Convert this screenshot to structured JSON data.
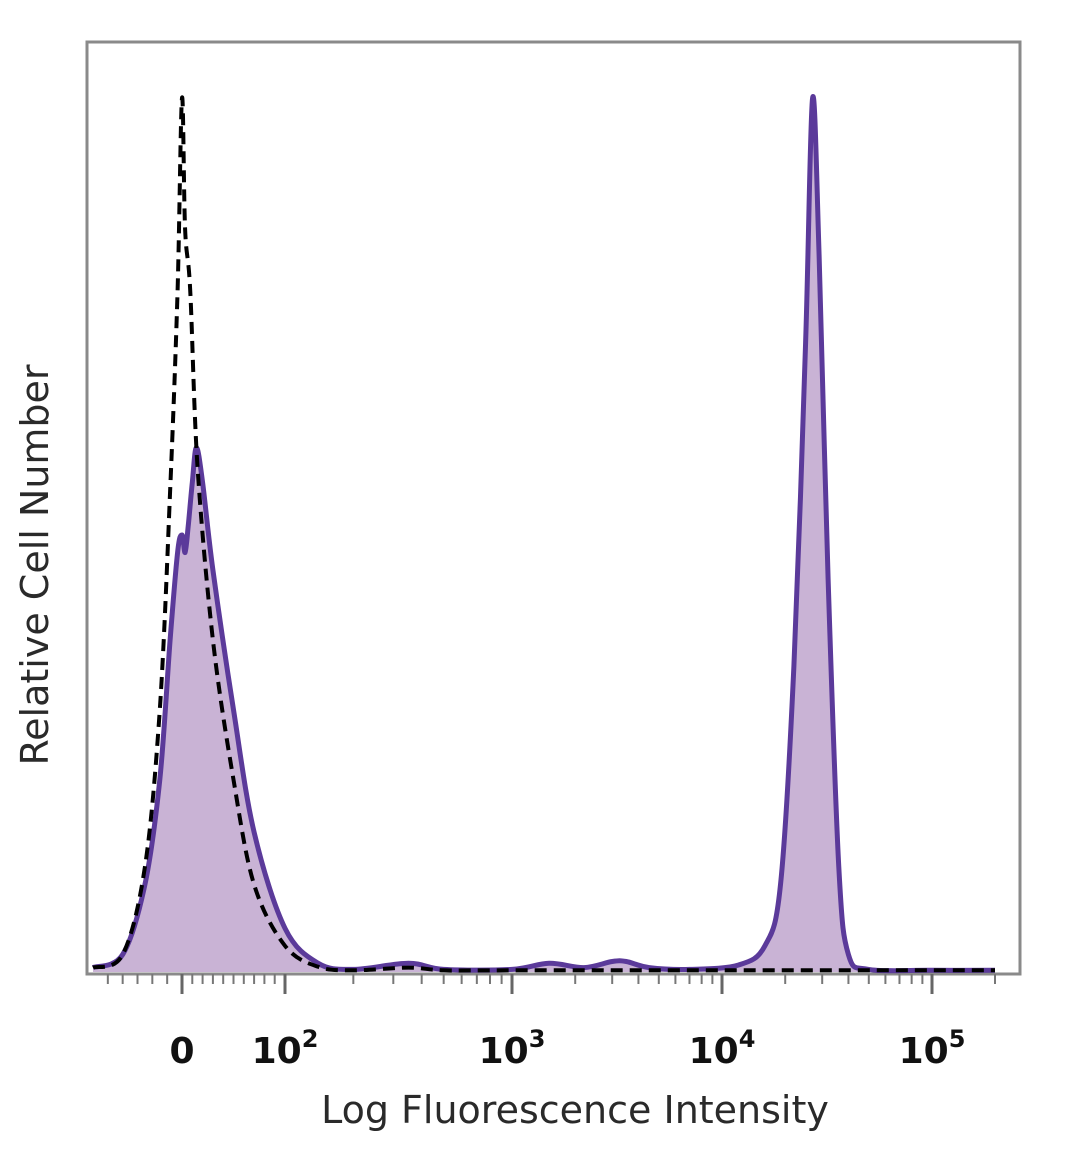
{
  "chart_data": {
    "type": "area",
    "title": "",
    "xlabel": "Log Fluorescence Intensity",
    "ylabel": "Relative Cell Number",
    "x_scale": "biexponential",
    "x_ticks": [
      {
        "value": 0,
        "label": "0"
      },
      {
        "value": 100,
        "label": "10",
        "exp": "2"
      },
      {
        "value": 1000,
        "label": "10",
        "exp": "3"
      },
      {
        "value": 10000,
        "label": "10",
        "exp": "4"
      },
      {
        "value": 100000,
        "label": "10",
        "exp": "5"
      }
    ],
    "ylim": [
      0,
      100
    ],
    "grid": false,
    "legend": "none",
    "series": [
      {
        "role": "control",
        "style": "dashed",
        "filled": false,
        "color": "#000000",
        "points": [
          [
            -60,
            0.5
          ],
          [
            -40,
            2
          ],
          [
            -25,
            12
          ],
          [
            -15,
            30
          ],
          [
            -8,
            55
          ],
          [
            -3,
            78
          ],
          [
            0,
            100
          ],
          [
            3,
            85
          ],
          [
            8,
            78
          ],
          [
            15,
            58
          ],
          [
            30,
            38
          ],
          [
            50,
            22
          ],
          [
            70,
            10
          ],
          [
            100,
            3
          ],
          [
            140,
            0.6
          ],
          [
            200,
            0.2
          ],
          [
            350,
            0.5
          ],
          [
            500,
            0.2
          ],
          [
            1000,
            0.2
          ],
          [
            10000,
            0.2
          ],
          [
            100000,
            0.2
          ],
          [
            200000,
            0.2
          ]
        ]
      },
      {
        "role": "stained",
        "style": "solid",
        "filled": true,
        "color": "#5b3a9a",
        "fill": "#c9b3d5",
        "points": [
          [
            -60,
            0.5
          ],
          [
            -40,
            2
          ],
          [
            -25,
            10
          ],
          [
            -15,
            22
          ],
          [
            -8,
            38
          ],
          [
            -3,
            48
          ],
          [
            0,
            50
          ],
          [
            3,
            48
          ],
          [
            6,
            51
          ],
          [
            10,
            56
          ],
          [
            14,
            60
          ],
          [
            20,
            56
          ],
          [
            30,
            46
          ],
          [
            50,
            30
          ],
          [
            70,
            16
          ],
          [
            100,
            5
          ],
          [
            140,
            1
          ],
          [
            200,
            0.3
          ],
          [
            350,
            1
          ],
          [
            500,
            0.3
          ],
          [
            1000,
            0.3
          ],
          [
            1500,
            1
          ],
          [
            2200,
            0.5
          ],
          [
            3000,
            1.2
          ],
          [
            3500,
            1.2
          ],
          [
            4500,
            0.5
          ],
          [
            7000,
            0.3
          ],
          [
            12000,
            0.8
          ],
          [
            16000,
            3
          ],
          [
            19000,
            10
          ],
          [
            22000,
            35
          ],
          [
            25000,
            72
          ],
          [
            27000,
            100
          ],
          [
            29000,
            82
          ],
          [
            32000,
            45
          ],
          [
            36000,
            12
          ],
          [
            40000,
            2
          ],
          [
            50000,
            0.3
          ],
          [
            100000,
            0.2
          ],
          [
            200000,
            0.2
          ]
        ]
      }
    ]
  }
}
